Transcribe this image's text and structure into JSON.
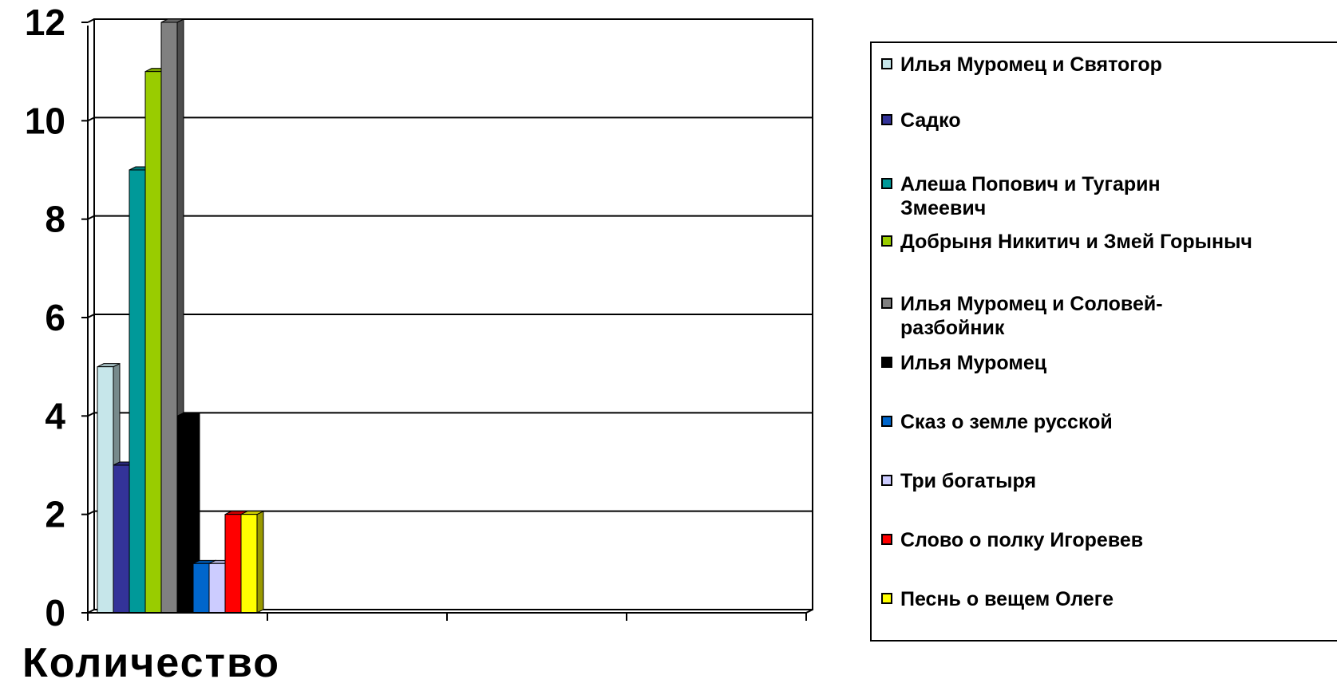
{
  "chart_data": {
    "type": "bar",
    "categories": [
      "Количество"
    ],
    "series": [
      {
        "name": "Илья Муромец и Святогор",
        "values": [
          5
        ],
        "color": "#c6e6ea"
      },
      {
        "name": "Садко",
        "values": [
          3
        ],
        "color": "#333399"
      },
      {
        "name": "Алеша Попович и Тугарин\nЗмеевич",
        "values": [
          9
        ],
        "color": "#009999"
      },
      {
        "name": "Добрыня Никитич и Змей Горыныч",
        "values": [
          11
        ],
        "color": "#99cc00"
      },
      {
        "name": "Илья Муромец и Соловей-\nразбойник",
        "values": [
          12
        ],
        "color": "#808080"
      },
      {
        "name": "Илья Муромец",
        "values": [
          4
        ],
        "color": "#000000"
      },
      {
        "name": "Сказ о земле русской",
        "values": [
          1
        ],
        "color": "#0066cc"
      },
      {
        "name": "Три богатыря",
        "values": [
          1
        ],
        "color": "#ccccff"
      },
      {
        "name": "Слово о полку Игоревев",
        "values": [
          2
        ],
        "color": "#ff0000"
      },
      {
        "name": "Песнь о вещем Олеге",
        "values": [
          2
        ],
        "color": "#ffff00"
      }
    ],
    "yticks": [
      "0",
      "2",
      "4",
      "6",
      "8",
      "10",
      "12"
    ],
    "ylim": [
      0,
      12
    ],
    "grid": true,
    "legend_position": "right"
  }
}
